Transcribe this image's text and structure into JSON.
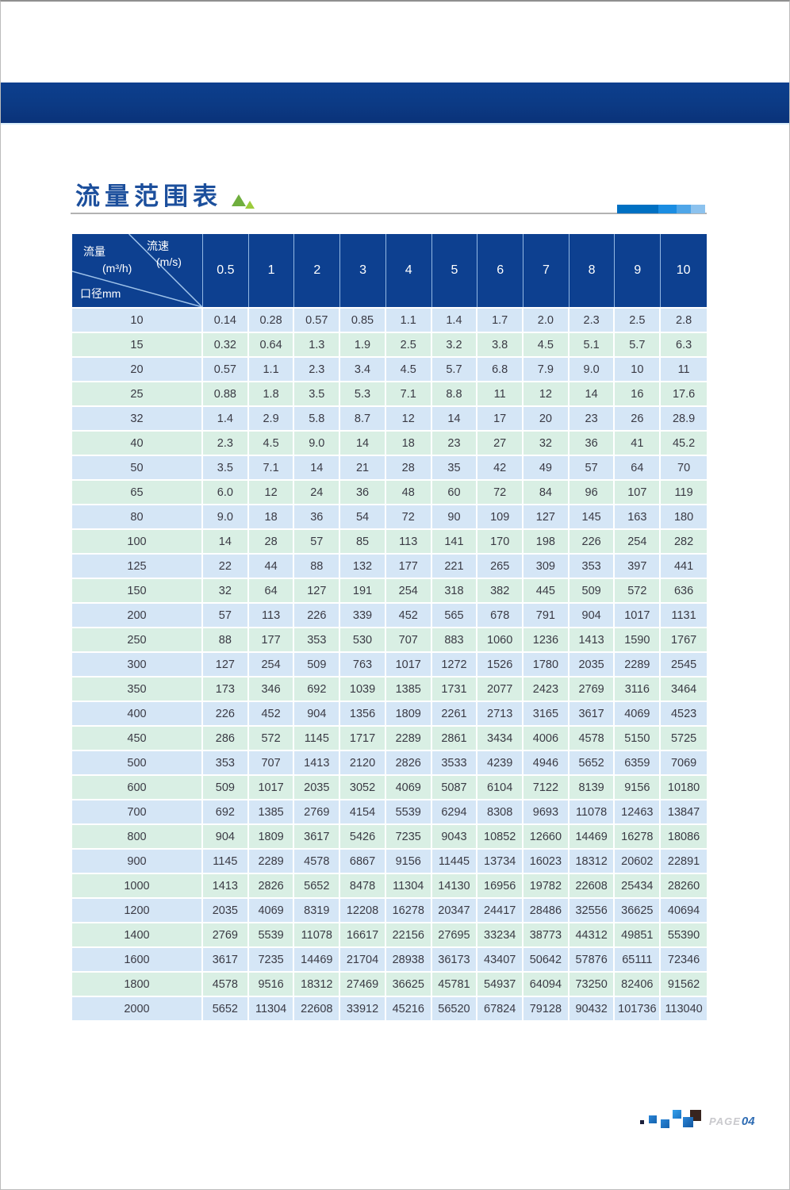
{
  "title": {
    "text": "流量范围表"
  },
  "table": {
    "corner": {
      "flow_label": "流量",
      "flow_unit": "(m³/h)",
      "velocity_label": "流速",
      "velocity_unit": "(m/s)",
      "diameter_label": "口径mm"
    },
    "velocity_columns": [
      "0.5",
      "1",
      "2",
      "3",
      "4",
      "5",
      "6",
      "7",
      "8",
      "9",
      "10"
    ],
    "rows": [
      {
        "diameter": "10",
        "values": [
          "0.14",
          "0.28",
          "0.57",
          "0.85",
          "1.1",
          "1.4",
          "1.7",
          "2.0",
          "2.3",
          "2.5",
          "2.8"
        ]
      },
      {
        "diameter": "15",
        "values": [
          "0.32",
          "0.64",
          "1.3",
          "1.9",
          "2.5",
          "3.2",
          "3.8",
          "4.5",
          "5.1",
          "5.7",
          "6.3"
        ]
      },
      {
        "diameter": "20",
        "values": [
          "0.57",
          "1.1",
          "2.3",
          "3.4",
          "4.5",
          "5.7",
          "6.8",
          "7.9",
          "9.0",
          "10",
          "11"
        ]
      },
      {
        "diameter": "25",
        "values": [
          "0.88",
          "1.8",
          "3.5",
          "5.3",
          "7.1",
          "8.8",
          "11",
          "12",
          "14",
          "16",
          "17.6"
        ]
      },
      {
        "diameter": "32",
        "values": [
          "1.4",
          "2.9",
          "5.8",
          "8.7",
          "12",
          "14",
          "17",
          "20",
          "23",
          "26",
          "28.9"
        ]
      },
      {
        "diameter": "40",
        "values": [
          "2.3",
          "4.5",
          "9.0",
          "14",
          "18",
          "23",
          "27",
          "32",
          "36",
          "41",
          "45.2"
        ]
      },
      {
        "diameter": "50",
        "values": [
          "3.5",
          "7.1",
          "14",
          "21",
          "28",
          "35",
          "42",
          "49",
          "57",
          "64",
          "70"
        ]
      },
      {
        "diameter": "65",
        "values": [
          "6.0",
          "12",
          "24",
          "36",
          "48",
          "60",
          "72",
          "84",
          "96",
          "107",
          "119"
        ]
      },
      {
        "diameter": "80",
        "values": [
          "9.0",
          "18",
          "36",
          "54",
          "72",
          "90",
          "109",
          "127",
          "145",
          "163",
          "180"
        ]
      },
      {
        "diameter": "100",
        "values": [
          "14",
          "28",
          "57",
          "85",
          "113",
          "141",
          "170",
          "198",
          "226",
          "254",
          "282"
        ]
      },
      {
        "diameter": "125",
        "values": [
          "22",
          "44",
          "88",
          "132",
          "177",
          "221",
          "265",
          "309",
          "353",
          "397",
          "441"
        ]
      },
      {
        "diameter": "150",
        "values": [
          "32",
          "64",
          "127",
          "191",
          "254",
          "318",
          "382",
          "445",
          "509",
          "572",
          "636"
        ]
      },
      {
        "diameter": "200",
        "values": [
          "57",
          "113",
          "226",
          "339",
          "452",
          "565",
          "678",
          "791",
          "904",
          "1017",
          "1131"
        ]
      },
      {
        "diameter": "250",
        "values": [
          "88",
          "177",
          "353",
          "530",
          "707",
          "883",
          "1060",
          "1236",
          "1413",
          "1590",
          "1767"
        ]
      },
      {
        "diameter": "300",
        "values": [
          "127",
          "254",
          "509",
          "763",
          "1017",
          "1272",
          "1526",
          "1780",
          "2035",
          "2289",
          "2545"
        ]
      },
      {
        "diameter": "350",
        "values": [
          "173",
          "346",
          "692",
          "1039",
          "1385",
          "1731",
          "2077",
          "2423",
          "2769",
          "3116",
          "3464"
        ]
      },
      {
        "diameter": "400",
        "values": [
          "226",
          "452",
          "904",
          "1356",
          "1809",
          "2261",
          "2713",
          "3165",
          "3617",
          "4069",
          "4523"
        ]
      },
      {
        "diameter": "450",
        "values": [
          "286",
          "572",
          "1145",
          "1717",
          "2289",
          "2861",
          "3434",
          "4006",
          "4578",
          "5150",
          "5725"
        ]
      },
      {
        "diameter": "500",
        "values": [
          "353",
          "707",
          "1413",
          "2120",
          "2826",
          "3533",
          "4239",
          "4946",
          "5652",
          "6359",
          "7069"
        ]
      },
      {
        "diameter": "600",
        "values": [
          "509",
          "1017",
          "2035",
          "3052",
          "4069",
          "5087",
          "6104",
          "7122",
          "8139",
          "9156",
          "10180"
        ]
      },
      {
        "diameter": "700",
        "values": [
          "692",
          "1385",
          "2769",
          "4154",
          "5539",
          "6294",
          "8308",
          "9693",
          "11078",
          "12463",
          "13847"
        ]
      },
      {
        "diameter": "800",
        "values": [
          "904",
          "1809",
          "3617",
          "5426",
          "7235",
          "9043",
          "10852",
          "12660",
          "14469",
          "16278",
          "18086"
        ]
      },
      {
        "diameter": "900",
        "values": [
          "1145",
          "2289",
          "4578",
          "6867",
          "9156",
          "11445",
          "13734",
          "16023",
          "18312",
          "20602",
          "22891"
        ]
      },
      {
        "diameter": "1000",
        "values": [
          "1413",
          "2826",
          "5652",
          "8478",
          "11304",
          "14130",
          "16956",
          "19782",
          "22608",
          "25434",
          "28260"
        ]
      },
      {
        "diameter": "1200",
        "values": [
          "2035",
          "4069",
          "8319",
          "12208",
          "16278",
          "20347",
          "24417",
          "28486",
          "32556",
          "36625",
          "40694"
        ]
      },
      {
        "diameter": "1400",
        "values": [
          "2769",
          "5539",
          "11078",
          "16617",
          "22156",
          "27695",
          "33234",
          "38773",
          "44312",
          "49851",
          "55390"
        ]
      },
      {
        "diameter": "1600",
        "values": [
          "3617",
          "7235",
          "14469",
          "21704",
          "28938",
          "36173",
          "43407",
          "50642",
          "57876",
          "65111",
          "72346"
        ]
      },
      {
        "diameter": "1800",
        "values": [
          "4578",
          "9516",
          "18312",
          "27469",
          "36625",
          "45781",
          "54937",
          "64094",
          "73250",
          "82406",
          "91562"
        ]
      },
      {
        "diameter": "2000",
        "values": [
          "5652",
          "11304",
          "22608",
          "33912",
          "45216",
          "56520",
          "67824",
          "79128",
          "90432",
          "101736",
          "113040"
        ]
      }
    ]
  },
  "footer": {
    "page_label": "PAGE",
    "page_number": "04"
  },
  "colors": {
    "band_blue": "#0c3a84",
    "header_blue": "#0d4090",
    "row_blue": "#d5e6f6",
    "row_green": "#d9efe4",
    "title_blue": "#1c4f9c",
    "accent_green": "#6fae3e",
    "accent_green_light": "#9ccb3c",
    "cell_text": "#3a3a44",
    "page_number_blue": "#2f6cb3"
  }
}
